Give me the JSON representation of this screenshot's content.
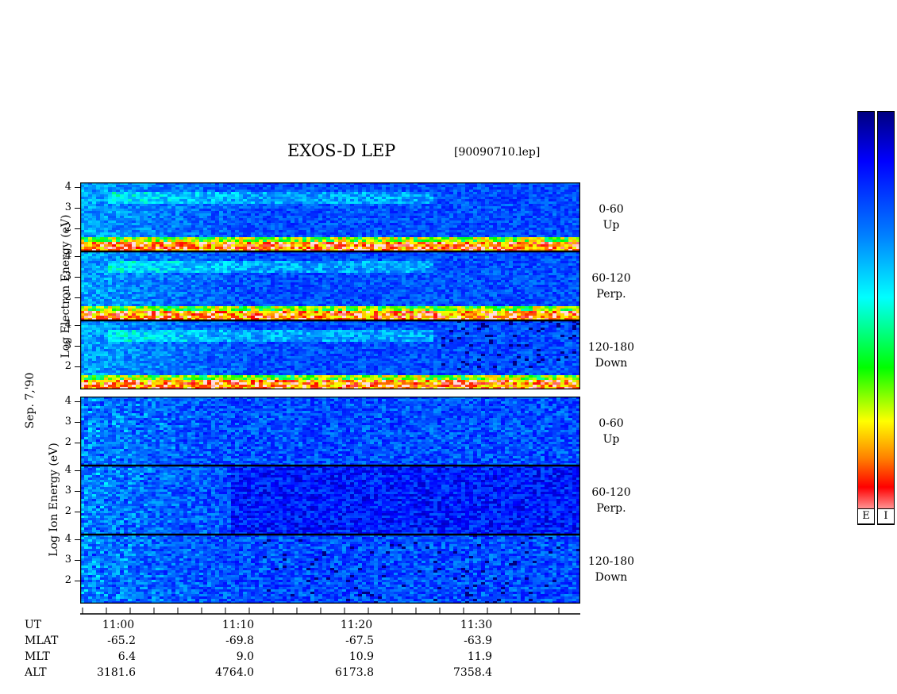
{
  "chart_data": {
    "type": "heatmap",
    "title": "EXOS-D LEP",
    "file_label": "[90090710.lep]",
    "date_label": "Sep. 7,'90",
    "electron_ylabel": "Log Electron Energy (eV)",
    "ion_ylabel": "Log Ion Energy (eV)",
    "y_ticks": [
      "4",
      "3",
      "2"
    ],
    "pitch_angle_labels": [
      {
        "range": "0-60",
        "dir": "Up"
      },
      {
        "range": "60-120",
        "dir": "Perp."
      },
      {
        "range": "120-180",
        "dir": "Down"
      }
    ],
    "x_ticks": [
      "11:00",
      "11:10",
      "11:20",
      "11:30"
    ],
    "ephemeris": {
      "labels": [
        "UT",
        "MLAT",
        "MLT",
        "ALT"
      ],
      "MLAT": [
        "-65.2",
        "-69.8",
        "-67.5",
        "-63.9"
      ],
      "MLT": [
        "6.4",
        "9.0",
        "10.9",
        "11.9"
      ],
      "ALT": [
        "3181.6",
        "4764.0",
        "6173.8",
        "7358.4"
      ]
    },
    "colorbar_labels": [
      "E",
      "I"
    ],
    "x_range": [
      "10:57",
      "11:39"
    ],
    "y_range": [
      1,
      4.2
    ],
    "colormap": [
      "#ffffff",
      "#ff0000",
      "#ffff00",
      "#00ff00",
      "#00ffff",
      "#0000ff",
      "#000080"
    ]
  }
}
